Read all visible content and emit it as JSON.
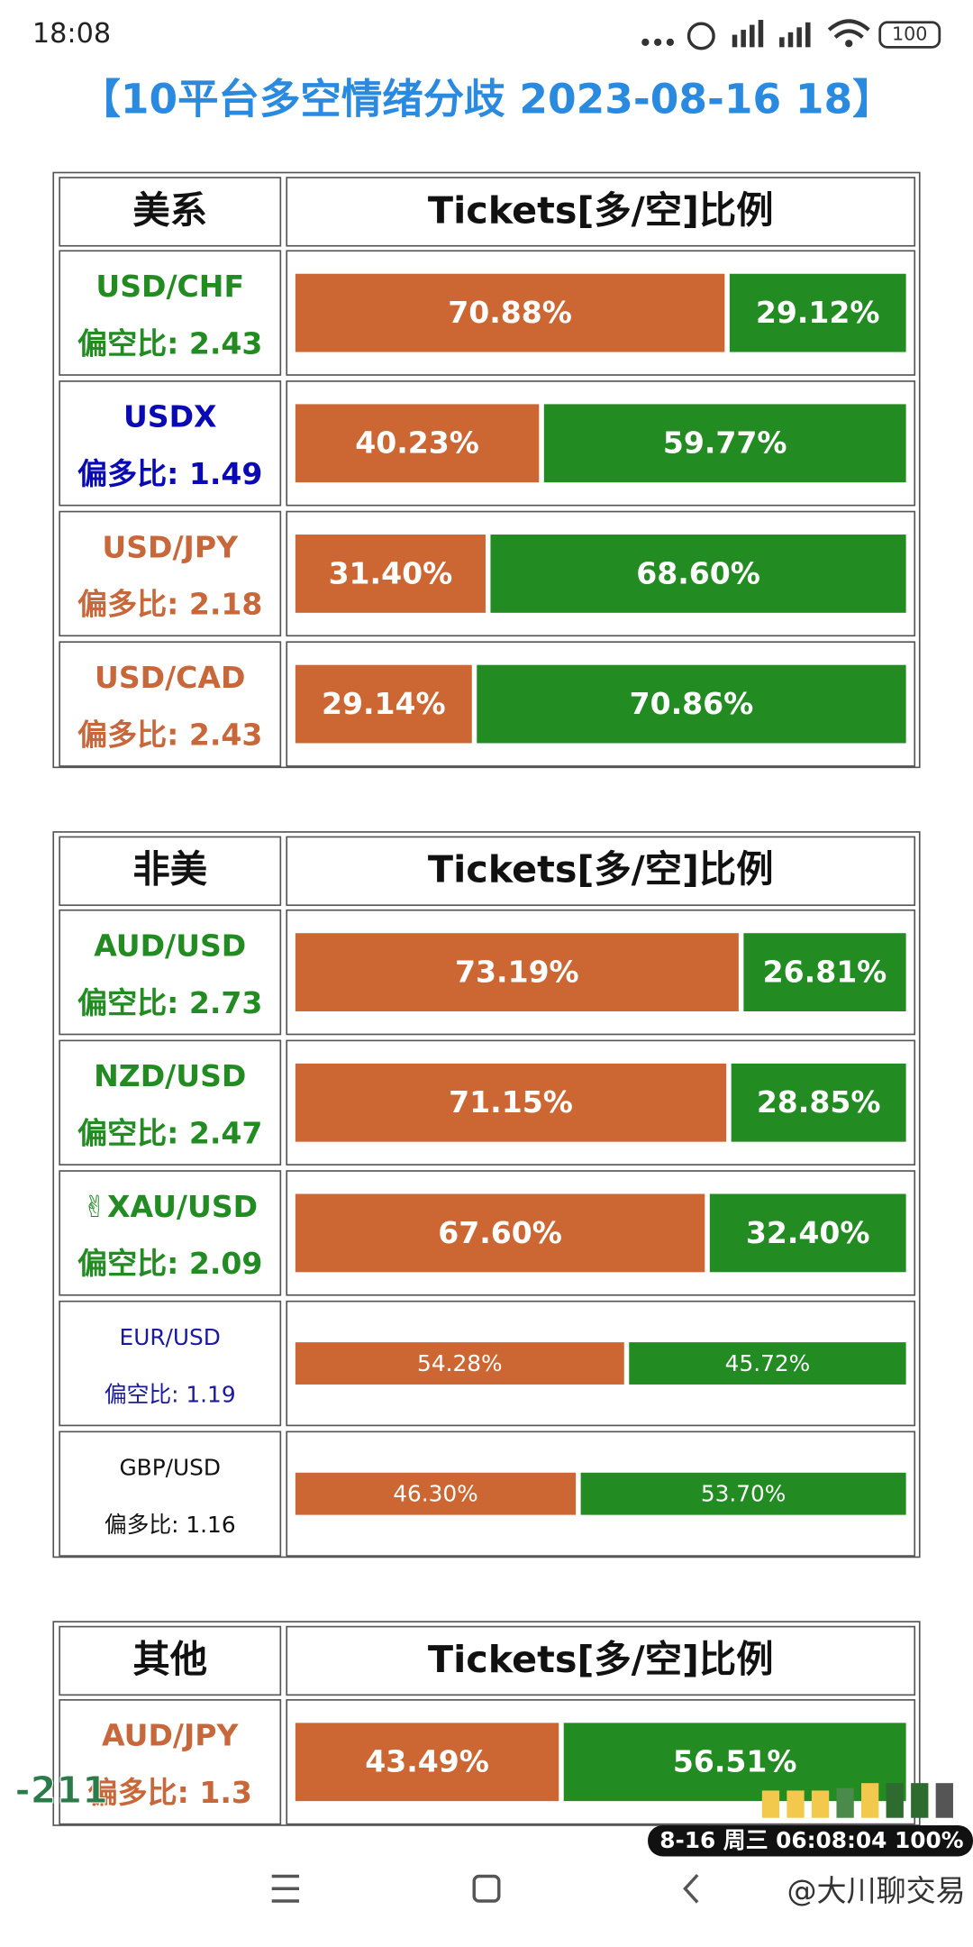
{
  "status_bar": {
    "time": "18:08",
    "battery": "100"
  },
  "title": "【10平台多空情绪分歧 2023-08-16 18】",
  "tables": [
    {
      "header": [
        "美系",
        "Tickets[多/空]比例"
      ],
      "rows": [
        {
          "pair": "USD/CHF",
          "ratio": "偏空比: 2.43",
          "long": "70.88%",
          "short": "29.12%",
          "color": "#228b22",
          "bold": true
        },
        {
          "pair": "USDX",
          "ratio": "偏多比: 1.49",
          "long": "40.23%",
          "short": "59.77%",
          "color": "#0a0ab4",
          "bold": true
        },
        {
          "pair": "USD/JPY",
          "ratio": "偏多比: 2.18",
          "long": "31.40%",
          "short": "68.60%",
          "color": "#c8673a",
          "bold": true
        },
        {
          "pair": "USD/CAD",
          "ratio": "偏多比: 2.43",
          "long": "29.14%",
          "short": "70.86%",
          "color": "#c8673a",
          "bold": true
        }
      ]
    },
    {
      "header": [
        "非美",
        "Tickets[多/空]比例"
      ],
      "rows": [
        {
          "pair": "AUD/USD",
          "ratio": "偏空比: 2.73",
          "long": "73.19%",
          "short": "26.81%",
          "color": "#228b22",
          "bold": true
        },
        {
          "pair": "NZD/USD",
          "ratio": "偏空比: 2.47",
          "long": "71.15%",
          "short": "28.85%",
          "color": "#228b22",
          "bold": true
        },
        {
          "pair": "✌XAU/USD",
          "ratio": "偏空比: 2.09",
          "long": "67.60%",
          "short": "32.40%",
          "color": "#228b22",
          "bold": true
        },
        {
          "pair": "EUR/USD",
          "ratio": "偏空比: 1.19",
          "long": "54.28%",
          "short": "45.72%",
          "color": "#1a1aa0",
          "bold": false
        },
        {
          "pair": "GBP/USD",
          "ratio": "偏多比: 1.16",
          "long": "46.30%",
          "short": "53.70%",
          "color": "#111111",
          "bold": false
        }
      ]
    },
    {
      "header": [
        "其他",
        "Tickets[多/空]比例"
      ],
      "rows": [
        {
          "pair": "AUD/JPY",
          "ratio": "偏多比: 1.3",
          "long": "43.49%",
          "short": "56.51%",
          "color": "#c8673a",
          "bold": true
        }
      ]
    }
  ],
  "overlays": {
    "counter": "-211",
    "timestamp": "8-16 周三 06:08:04 100%",
    "watermark": "@大川聊交易"
  }
}
